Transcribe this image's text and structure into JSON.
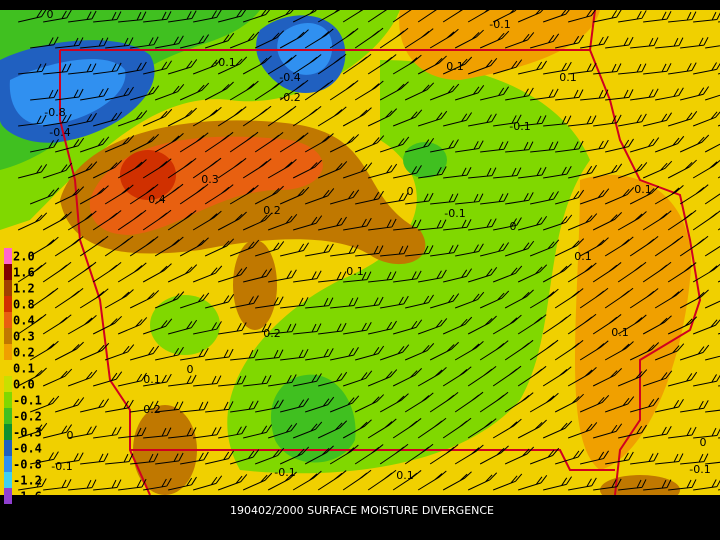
{
  "caption": "190402/2000 SURFACE MOISTURE DIVERGENCE",
  "legend": {
    "labels": [
      "2.0",
      "1.6",
      "1.2",
      "0.8",
      "0.4",
      "0.3",
      "0.2",
      "0.1",
      "0.0",
      "-0.1",
      "-0.2",
      "-0.3",
      "-0.4",
      "-0.8",
      "-1.2",
      "-1.6"
    ],
    "colors": [
      "#ff66cc",
      "#800000",
      "#a04000",
      "#d03000",
      "#e86010",
      "#c07800",
      "#f0a000",
      "#f0d000",
      "#c8e000",
      "#80d800",
      "#40c020",
      "#109030",
      "#2060c0",
      "#3090f0",
      "#40d0f0",
      "#9040d0"
    ]
  },
  "contour_labels": [
    "0",
    "-0.1",
    "0.1",
    "-0.1",
    "-0.4",
    "-0.2",
    "-0.8",
    "-0.4",
    "0.1",
    "-0.1",
    "0.3",
    "0.4",
    "0",
    "-0.1",
    "0.2",
    "0",
    "0.1",
    "0.1",
    "0.1",
    "0.2",
    "0.1",
    "0",
    "0.1",
    "0.2",
    "0",
    "-0.1",
    "-0.1",
    "0.1",
    "0",
    "-0.1"
  ]
}
